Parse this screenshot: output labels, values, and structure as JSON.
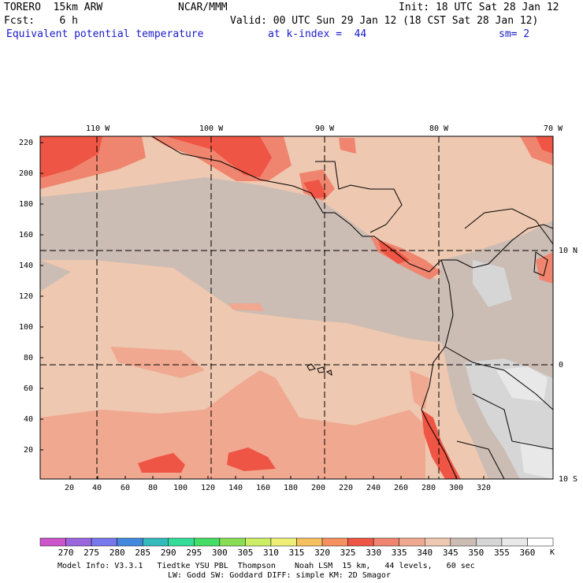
{
  "header": {
    "model": "TORERO  15km ARW",
    "org": "NCAR/MMM",
    "init": "Init: 18 UTC Sat 28 Jan 12",
    "fcst": "Fcst:    6 h",
    "valid": "Valid: 00 UTC Sun 29 Jan 12 (18 CST Sat 28 Jan 12)",
    "field": "Equivalent potential temperature",
    "level": "at k-index =  44",
    "smooth": "sm= 2"
  },
  "map": {
    "lon_labels": [
      "110 W",
      "100 W",
      "90 W",
      "80 W",
      "70 W"
    ],
    "lat_labels": [
      "10 N",
      "0",
      "10 S"
    ],
    "y_ticks": [
      "220",
      "200",
      "180",
      "160",
      "140",
      "120",
      "100",
      "80",
      "60",
      "40",
      "20"
    ],
    "x_ticks": [
      "20",
      "40",
      "60",
      "80",
      "100",
      "120",
      "140",
      "160",
      "180",
      "200",
      "220",
      "240",
      "260",
      "280",
      "300",
      "320"
    ]
  },
  "colorbar": {
    "labels": [
      "270",
      "275",
      "280",
      "285",
      "290",
      "295",
      "300",
      "305",
      "310",
      "315",
      "320",
      "325",
      "330",
      "335",
      "340",
      "345",
      "350",
      "355",
      "360"
    ],
    "unit": "K",
    "colors": [
      "#cc55cc",
      "#9966dd",
      "#7777ee",
      "#4488dd",
      "#33bbbb",
      "#33dd99",
      "#44dd66",
      "#88dd55",
      "#ccee66",
      "#eeee77",
      "#f5c060",
      "#f59060",
      "#ee5544",
      "#f0856f",
      "#f0a890",
      "#eec8b0",
      "#cbbcb4",
      "#d6d6d6",
      "#e8e8e8",
      "#ffffff"
    ]
  },
  "footer": {
    "line1": "Model Info: V3.3.1   Tiedtke YSU PBL  Thompson    Noah LSM  15 km,   44 levels,   60 sec",
    "line2": "LW: Godd SW: Goddard DIFF: simple KM: 2D Smagor"
  }
}
